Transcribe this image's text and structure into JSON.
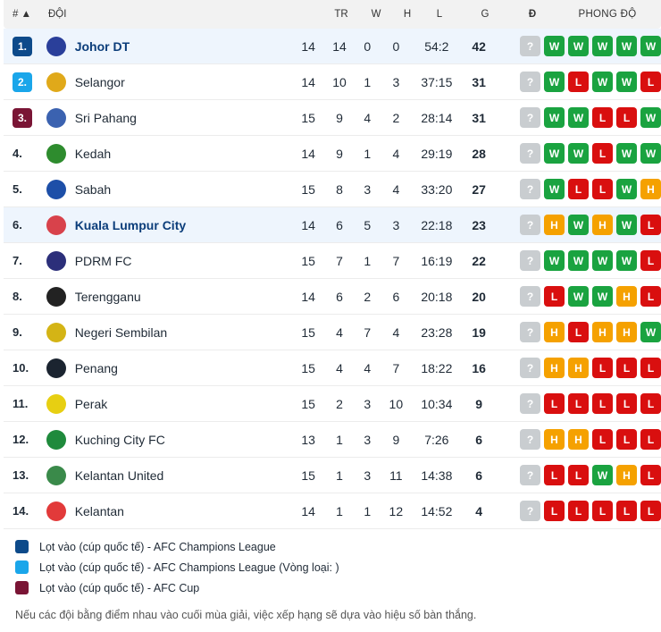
{
  "header": {
    "rank": "# ▲",
    "team": "ĐỘI",
    "tr": "TR",
    "w": "W",
    "h": "H",
    "l": "L",
    "g": "G",
    "p": "Đ",
    "form": "PHONG ĐỘ"
  },
  "colors": {
    "acl": "#0d4a8a",
    "acl_q": "#1aa6ea",
    "afc_cup": "#7a1535",
    "win": "#1aa340",
    "loss": "#d90f0f",
    "draw": "#f5a100",
    "unknown": "#c9cdd0"
  },
  "rows": [
    {
      "rank": "1.",
      "team": "Johor DT",
      "tr": "14",
      "w": "14",
      "h": "0",
      "l": "0",
      "g": "54:2",
      "p": "42",
      "form": [
        "?",
        "W",
        "W",
        "W",
        "W",
        "W"
      ],
      "zone": "acl",
      "highlight": true,
      "logo": "#2a3f9a"
    },
    {
      "rank": "2.",
      "team": "Selangor",
      "tr": "14",
      "w": "10",
      "h": "1",
      "l": "3",
      "g": "37:15",
      "p": "31",
      "form": [
        "?",
        "W",
        "L",
        "W",
        "W",
        "L"
      ],
      "zone": "acl_q",
      "highlight": false,
      "logo": "#e0a91a"
    },
    {
      "rank": "3.",
      "team": "Sri Pahang",
      "tr": "15",
      "w": "9",
      "h": "4",
      "l": "2",
      "g": "28:14",
      "p": "31",
      "form": [
        "?",
        "W",
        "W",
        "L",
        "L",
        "W"
      ],
      "zone": "afc_cup",
      "highlight": false,
      "logo": "#3b62b0"
    },
    {
      "rank": "4.",
      "team": "Kedah",
      "tr": "14",
      "w": "9",
      "h": "1",
      "l": "4",
      "g": "29:19",
      "p": "28",
      "form": [
        "?",
        "W",
        "W",
        "L",
        "W",
        "W"
      ],
      "zone": "",
      "highlight": false,
      "logo": "#2e8c2e"
    },
    {
      "rank": "5.",
      "team": "Sabah",
      "tr": "15",
      "w": "8",
      "h": "3",
      "l": "4",
      "g": "33:20",
      "p": "27",
      "form": [
        "?",
        "W",
        "L",
        "L",
        "W",
        "H"
      ],
      "zone": "",
      "highlight": false,
      "logo": "#1d4fa8"
    },
    {
      "rank": "6.",
      "team": "Kuala Lumpur City",
      "tr": "14",
      "w": "6",
      "h": "5",
      "l": "3",
      "g": "22:18",
      "p": "23",
      "form": [
        "?",
        "H",
        "W",
        "H",
        "W",
        "L"
      ],
      "zone": "",
      "highlight": true,
      "logo": "#d8424b"
    },
    {
      "rank": "7.",
      "team": "PDRM FC",
      "tr": "15",
      "w": "7",
      "h": "1",
      "l": "7",
      "g": "16:19",
      "p": "22",
      "form": [
        "?",
        "W",
        "W",
        "W",
        "W",
        "L"
      ],
      "zone": "",
      "highlight": false,
      "logo": "#2c2f7a"
    },
    {
      "rank": "8.",
      "team": "Terengganu",
      "tr": "14",
      "w": "6",
      "h": "2",
      "l": "6",
      "g": "20:18",
      "p": "20",
      "form": [
        "?",
        "L",
        "W",
        "W",
        "H",
        "L"
      ],
      "zone": "",
      "highlight": false,
      "logo": "#222222"
    },
    {
      "rank": "9.",
      "team": "Negeri Sembilan",
      "tr": "15",
      "w": "4",
      "h": "7",
      "l": "4",
      "g": "23:28",
      "p": "19",
      "form": [
        "?",
        "H",
        "L",
        "H",
        "H",
        "W"
      ],
      "zone": "",
      "highlight": false,
      "logo": "#d4b415"
    },
    {
      "rank": "10.",
      "team": "Penang",
      "tr": "15",
      "w": "4",
      "h": "4",
      "l": "7",
      "g": "18:22",
      "p": "16",
      "form": [
        "?",
        "H",
        "H",
        "L",
        "L",
        "L"
      ],
      "zone": "",
      "highlight": false,
      "logo": "#1b2430"
    },
    {
      "rank": "11.",
      "team": "Perak",
      "tr": "15",
      "w": "2",
      "h": "3",
      "l": "10",
      "g": "10:34",
      "p": "9",
      "form": [
        "?",
        "L",
        "L",
        "L",
        "L",
        "L"
      ],
      "zone": "",
      "highlight": false,
      "logo": "#e7cf12"
    },
    {
      "rank": "12.",
      "team": "Kuching City FC",
      "tr": "13",
      "w": "1",
      "h": "3",
      "l": "9",
      "g": "7:26",
      "p": "6",
      "form": [
        "?",
        "H",
        "H",
        "L",
        "L",
        "L"
      ],
      "zone": "",
      "highlight": false,
      "logo": "#1f8a3c"
    },
    {
      "rank": "13.",
      "team": "Kelantan United",
      "tr": "15",
      "w": "1",
      "h": "3",
      "l": "11",
      "g": "14:38",
      "p": "6",
      "form": [
        "?",
        "L",
        "L",
        "W",
        "H",
        "L"
      ],
      "zone": "",
      "highlight": false,
      "logo": "#3a8a4a"
    },
    {
      "rank": "14.",
      "team": "Kelantan",
      "tr": "14",
      "w": "1",
      "h": "1",
      "l": "12",
      "g": "14:52",
      "p": "4",
      "form": [
        "?",
        "L",
        "L",
        "L",
        "L",
        "L"
      ],
      "zone": "",
      "highlight": false,
      "logo": "#e23a3a"
    }
  ],
  "legend": [
    {
      "label": "Lọt vào (cúp quốc tế) - AFC Champions League",
      "zone": "acl"
    },
    {
      "label": "Lọt vào (cúp quốc tế) - AFC Champions League (Vòng loại: )",
      "zone": "acl_q"
    },
    {
      "label": "Lọt vào (cúp quốc tế) - AFC Cup",
      "zone": "afc_cup"
    }
  ],
  "note": "Nếu các đội bằng điểm nhau vào cuối mùa giải, việc xếp hạng sẽ dựa vào hiệu số bàn thắng."
}
